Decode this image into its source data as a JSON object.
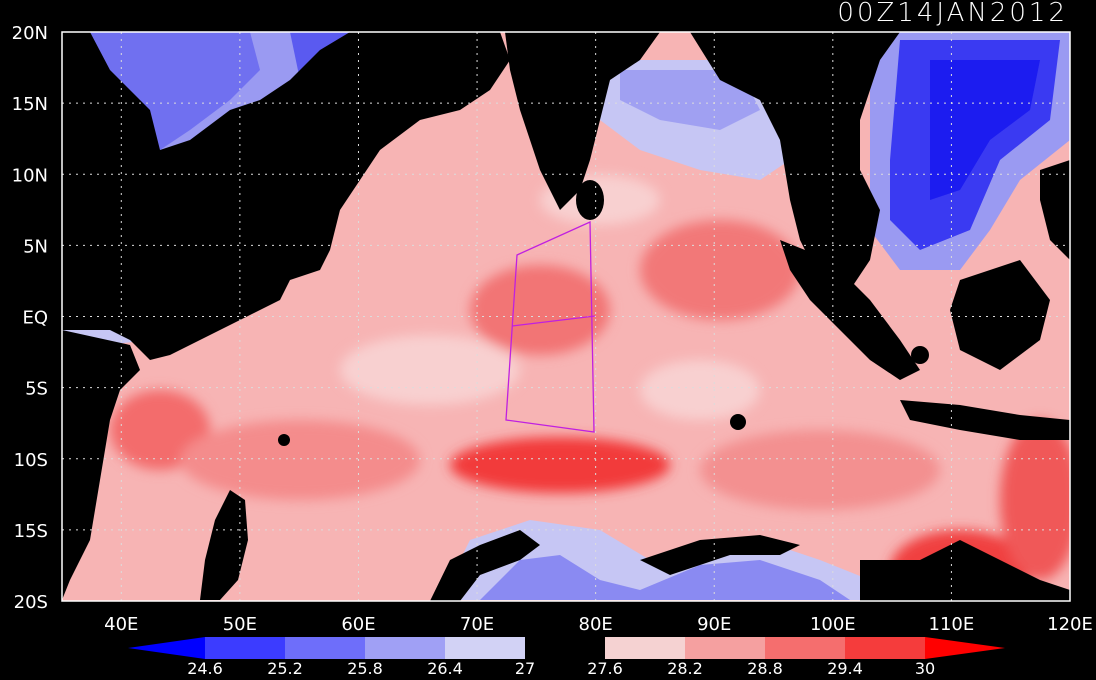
{
  "title": "00Z14JAN2012",
  "map": {
    "lon_range": [
      35,
      120
    ],
    "lat_range": [
      -20,
      20
    ],
    "lon_ticks": [
      "40E",
      "50E",
      "60E",
      "70E",
      "80E",
      "90E",
      "100E",
      "110E",
      "120E"
    ],
    "lat_ticks": [
      "20N",
      "15N",
      "10N",
      "5N",
      "EQ",
      "5S",
      "10S",
      "15S",
      "20S"
    ],
    "grid": "dotted",
    "box_outline_color": "#cc22ee"
  },
  "colorbar": {
    "labels": [
      "24.6",
      "25.2",
      "25.8",
      "26.4",
      "27",
      "27.6",
      "28.2",
      "28.8",
      "29.4",
      "30"
    ],
    "colors": [
      "#0000ff",
      "#3c3cff",
      "#6e6efa",
      "#a0a0f5",
      "#d2d2f5",
      "#000000",
      "#f5d2d2",
      "#f5a0a0",
      "#f56e6e",
      "#f53c3c",
      "#ff0000"
    ]
  }
}
